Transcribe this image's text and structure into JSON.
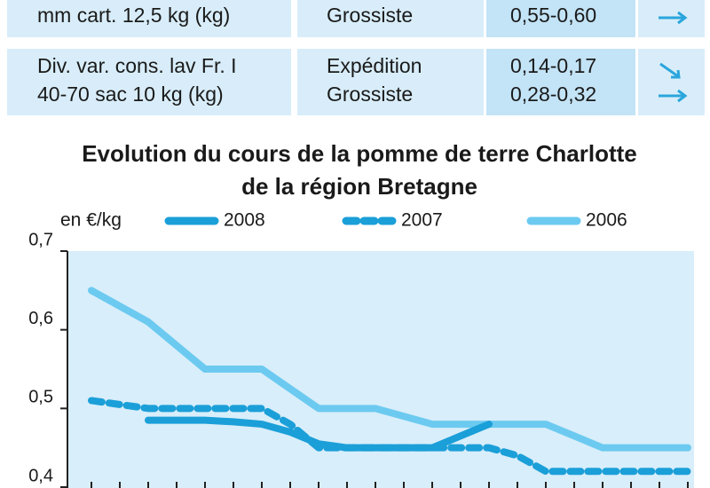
{
  "table": {
    "rows": [
      {
        "label": [
          "mm cart. 12,5 kg (kg)"
        ],
        "stage": [
          "Grossiste"
        ],
        "price": [
          "0,55-0,60"
        ]
      },
      {
        "label": [
          "Div. var. cons. lav Fr. I",
          "40-70 sac 10 kg (kg)"
        ],
        "stage": [
          "Expédition",
          "Grossiste"
        ],
        "price": [
          "0,14-0,17",
          "0,28-0,32"
        ]
      }
    ]
  },
  "chart_data": {
    "type": "line",
    "title": [
      "Evolution du cours de la pomme de terre Charlotte",
      "de la région Bretagne"
    ],
    "y_label": "en €/kg",
    "categories": [
      null,
      null,
      null,
      null,
      null,
      null,
      null,
      null,
      null,
      null,
      null,
      null,
      null,
      null,
      null,
      null,
      null,
      null,
      null,
      null,
      null,
      null
    ],
    "series": [
      {
        "name": "2008",
        "color": "#1b9fd8",
        "dashed": false,
        "values": [
          null,
          null,
          0.485,
          0.485,
          0.485,
          0.483,
          0.48,
          0.47,
          0.455,
          0.45,
          0.45,
          0.45,
          0.45,
          0.465,
          0.48,
          null,
          null,
          null,
          null,
          null,
          null,
          null
        ]
      },
      {
        "name": "2007",
        "color": "#1b9fd8",
        "dashed": true,
        "values": [
          0.51,
          0.505,
          0.5,
          0.5,
          0.5,
          0.5,
          0.5,
          0.48,
          0.45,
          0.45,
          0.45,
          0.45,
          0.45,
          0.45,
          0.45,
          0.44,
          0.42,
          0.42,
          0.42,
          0.42,
          0.42,
          0.42
        ]
      },
      {
        "name": "2006",
        "color": "#6ccaf0",
        "dashed": false,
        "values": [
          0.65,
          0.63,
          0.61,
          0.58,
          0.55,
          0.55,
          0.55,
          0.525,
          0.5,
          0.5,
          0.5,
          0.49,
          0.48,
          0.48,
          0.48,
          0.48,
          0.48,
          0.465,
          0.45,
          0.45,
          0.45,
          0.45
        ]
      }
    ],
    "ylim": [
      0.4,
      0.7
    ],
    "yticks": [
      {
        "value": 0.4,
        "label": "0,4"
      },
      {
        "value": 0.5,
        "label": "0,5"
      },
      {
        "value": 0.6,
        "label": "0,6"
      },
      {
        "value": 0.7,
        "label": "0,7"
      }
    ]
  }
}
